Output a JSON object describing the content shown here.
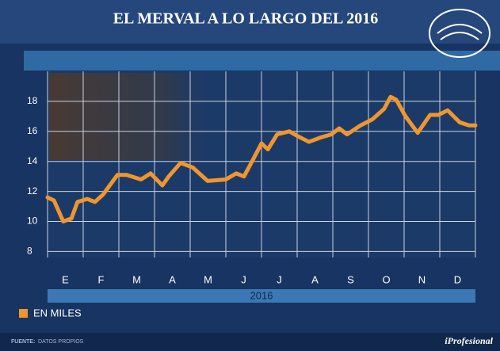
{
  "chart_data": {
    "type": "line",
    "title": "EL MERVAL A LO LARGO DEL 2016",
    "categories": [
      "E",
      "F",
      "M",
      "A",
      "M",
      "J",
      "J",
      "A",
      "S",
      "O",
      "N",
      "D"
    ],
    "x_label": "2016",
    "xlim": [
      0,
      12
    ],
    "ylim": [
      7.6,
      20
    ],
    "yticks": [
      8,
      10,
      12,
      14,
      16,
      18
    ],
    "grid": true,
    "series": [
      {
        "name": "EN MILES",
        "color": "#f0962e",
        "x": [
          0,
          0.18,
          0.44,
          0.67,
          0.84,
          1.11,
          1.33,
          1.56,
          1.96,
          2.22,
          2.62,
          2.89,
          3.22,
          3.4,
          3.73,
          4.07,
          4.49,
          5.0,
          5.29,
          5.51,
          5.78,
          6.0,
          6.18,
          6.44,
          6.78,
          7.0,
          7.33,
          7.67,
          7.96,
          8.18,
          8.4,
          8.78,
          9.11,
          9.44,
          9.62,
          9.78,
          10.04,
          10.38,
          10.73,
          10.96,
          11.22,
          11.56,
          11.82,
          12
        ],
        "values": [
          11.6,
          11.4,
          10.0,
          10.2,
          11.3,
          11.5,
          11.3,
          11.8,
          13.1,
          13.1,
          12.8,
          13.2,
          12.4,
          13.0,
          13.9,
          13.6,
          12.7,
          12.8,
          13.2,
          13.0,
          14.2,
          15.2,
          14.8,
          15.8,
          16.0,
          15.7,
          15.3,
          15.6,
          15.8,
          16.2,
          15.8,
          16.4,
          16.8,
          17.5,
          18.3,
          18.1,
          17.0,
          15.9,
          17.1,
          17.1,
          17.4,
          16.6,
          16.4,
          16.4
        ]
      }
    ],
    "source_label": "FUENTE:",
    "source": "DATOS PROPIOS",
    "brand": "iProfesional"
  }
}
